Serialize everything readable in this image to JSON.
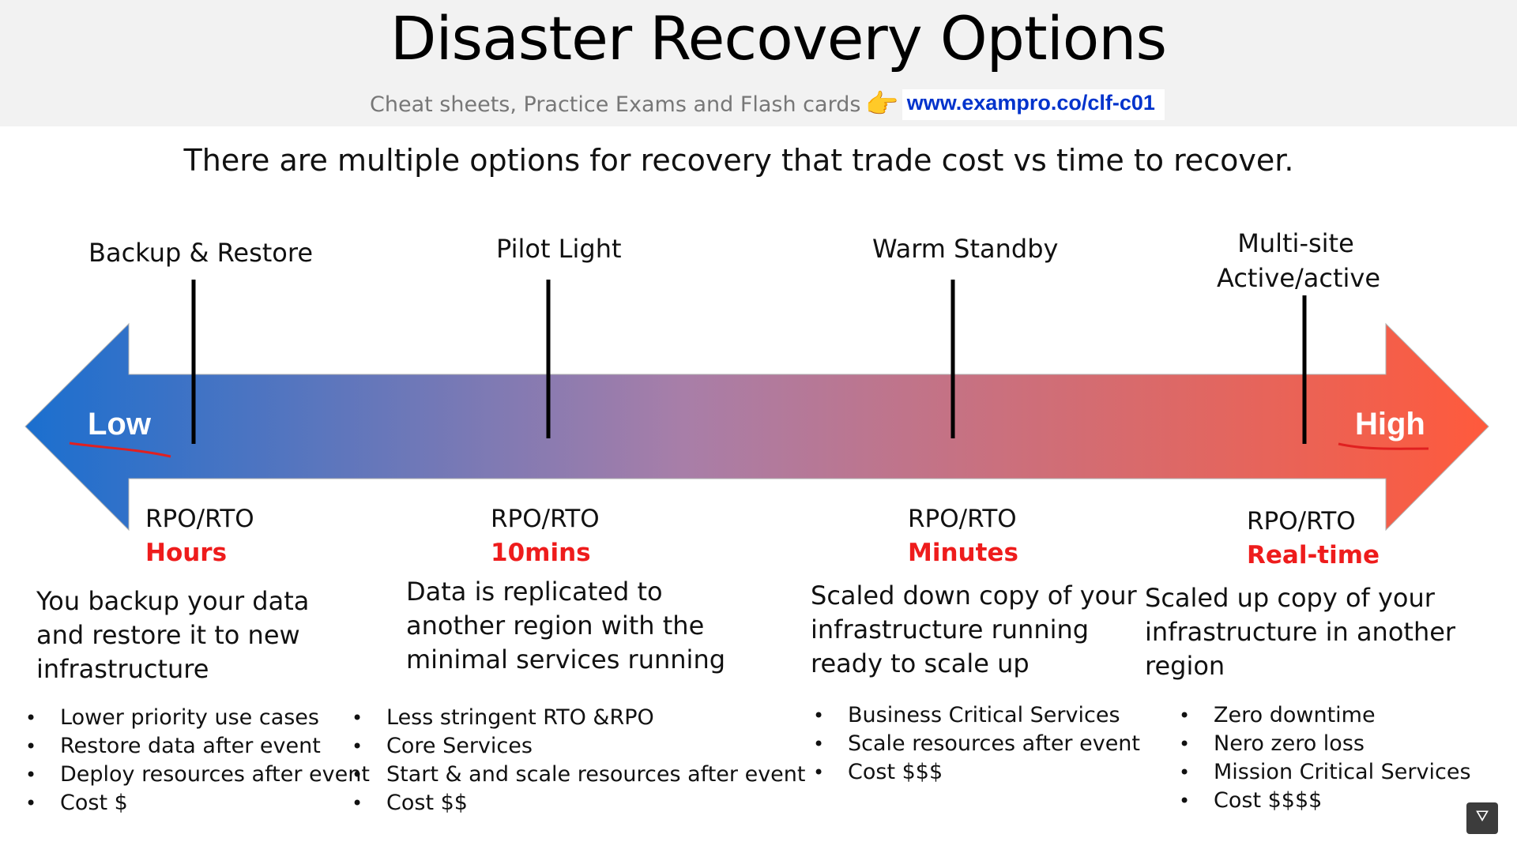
{
  "header": {
    "title": "Disaster Recovery Options",
    "subtitle": "Cheat sheets, Practice Exams and Flash cards",
    "url": "www.exampro.co/clf-c01"
  },
  "intro": "There are multiple options for recovery that trade cost vs time to recover.",
  "scale": {
    "low": "Low",
    "high": "High",
    "gradient_start": "#1b6fcf",
    "gradient_mid": "#a87ea8",
    "gradient_end": "#ff5a3c",
    "underline_color": "#e02020"
  },
  "options": [
    {
      "name": "Backup & Restore",
      "rpo_label": "RPO/RTO",
      "rpo_time": "Hours",
      "description": [
        "You backup your data",
        "and restore it to new",
        "infrastructure"
      ],
      "bullets": [
        "Lower priority use cases",
        "Restore data after event",
        "Deploy resources after event",
        "Cost $"
      ]
    },
    {
      "name": "Pilot Light",
      "rpo_label": "RPO/RTO",
      "rpo_time": "10mins",
      "description": [
        "Data is replicated to",
        "another region with the",
        "minimal services running"
      ],
      "bullets": [
        "Less stringent RTO &RPO",
        "Core Services",
        "Start & and scale resources after event",
        "Cost $$"
      ]
    },
    {
      "name": "Warm Standby",
      "rpo_label": "RPO/RTO",
      "rpo_time": "Minutes",
      "description": [
        "Scaled down copy of your",
        "infrastructure running",
        "ready to scale up"
      ],
      "bullets": [
        "Business Critical Services",
        "Scale resources after event",
        "Cost $$$"
      ]
    },
    {
      "name": "Multi-site Active/active",
      "name_lines": [
        "Multi-site",
        "Active/active"
      ],
      "rpo_label": "RPO/RTO",
      "rpo_time": "Real-time",
      "description": [
        "Scaled up copy of your",
        "infrastructure in another",
        "region"
      ],
      "bullets": [
        "Zero downtime",
        "Nero zero loss",
        "Mission Critical Services",
        "Cost $$$$"
      ]
    }
  ]
}
